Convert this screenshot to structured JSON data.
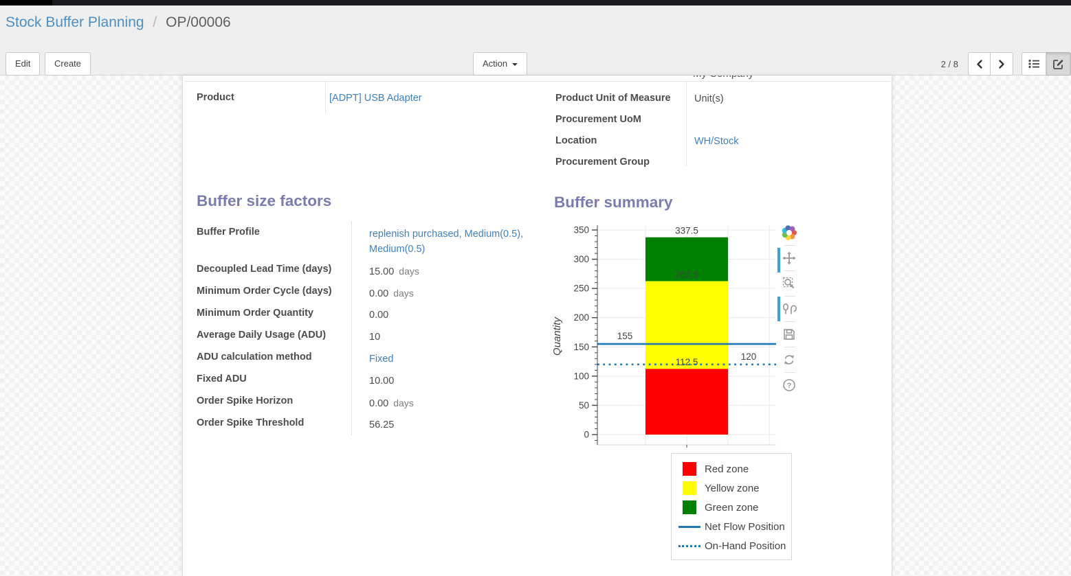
{
  "breadcrumb": {
    "parent": "Stock Buffer Planning",
    "separator": "/",
    "current": "OP/00006"
  },
  "controls": {
    "edit": "Edit",
    "create": "Create",
    "action": "Action",
    "pager": "2 / 8",
    "view_switcher": [
      "list-view",
      "form-view"
    ],
    "active_view": "form-view"
  },
  "form": {
    "clipped_value": "My Company",
    "product_group": {
      "rows": [
        {
          "label": "Product",
          "value": "[ADPT] USB Adapter"
        }
      ]
    },
    "info_group": {
      "rows": [
        {
          "label": "Product Unit of Measure",
          "value": "Unit(s)"
        },
        {
          "label": "Procurement UoM",
          "value": ""
        },
        {
          "label": "Location",
          "value": "WH/Stock"
        },
        {
          "label": "Procurement Group",
          "value": ""
        }
      ]
    },
    "buffer_factors": {
      "title": "Buffer size factors",
      "rows": [
        {
          "label": "Buffer Profile",
          "value": "replenish purchased, Medium(0.5), Medium(0.5)"
        },
        {
          "label": "Decoupled Lead Time (days)",
          "value": "15.00",
          "suffix": "days"
        },
        {
          "label": "Minimum Order Cycle (days)",
          "value": "0.00",
          "suffix": "days"
        },
        {
          "label": "Minimum Order Quantity",
          "value": "0.00"
        },
        {
          "label": "Average Daily Usage (ADU)",
          "value": "10"
        },
        {
          "label": "ADU calculation method",
          "value": "Fixed"
        },
        {
          "label": "Fixed ADU",
          "value": "10.00"
        },
        {
          "label": "Order Spike Horizon",
          "value": "0.00",
          "suffix": "days"
        },
        {
          "label": "Order Spike Threshold",
          "value": "56.25"
        }
      ]
    },
    "buffer_summary": {
      "title": "Buffer summary"
    }
  },
  "modebar": {
    "buttons": [
      "plotly-logo",
      "pan",
      "box-zoom",
      "compare-data-on-hover",
      "download-plot",
      "reset-axes",
      "help"
    ],
    "active": [
      "pan",
      "compare-data-on-hover"
    ]
  },
  "colors": {
    "heading": "#7c7bad",
    "link": "#3f80bd",
    "red_zone": "#ff0000",
    "yellow_zone": "#ffff00",
    "green_zone": "#008000",
    "flow_line": "#1f77b4"
  },
  "chart_data": {
    "type": "bar",
    "stacked": true,
    "categories": [
      ""
    ],
    "series": [
      {
        "name": "Red zone",
        "color": "#ff0000",
        "values": [
          112.5
        ],
        "top_label": "112.5"
      },
      {
        "name": "Yellow zone",
        "color": "#ffff00",
        "values": [
          150
        ],
        "top_label": "262.5"
      },
      {
        "name": "Green zone",
        "color": "#008000",
        "values": [
          75
        ],
        "top_label": "337.5"
      }
    ],
    "cumulative_tops": [
      112.5,
      262.5,
      337.5
    ],
    "hlines": [
      {
        "name": "Net Flow Position",
        "y": 155,
        "label": "155",
        "style": "solid",
        "color": "#1f77b4",
        "label_align": "left"
      },
      {
        "name": "On-Hand Position",
        "y": 120,
        "label": "120",
        "style": "dotted",
        "color": "#1f77b4",
        "label_align": "right"
      }
    ],
    "title": "",
    "xlabel": "",
    "ylabel": "Quantity",
    "ylim": [
      0,
      350
    ],
    "yticks_major": 50,
    "yticks_minor": 10,
    "grid": true,
    "legend_position": "bottom-right",
    "legend": [
      {
        "label": "Red zone",
        "swatch": "square",
        "color": "#ff0000"
      },
      {
        "label": "Yellow zone",
        "swatch": "square",
        "color": "#ffff00"
      },
      {
        "label": "Green zone",
        "swatch": "square",
        "color": "#008000"
      },
      {
        "label": "Net Flow Position",
        "swatch": "line-solid",
        "color": "#1f77b4"
      },
      {
        "label": "On-Hand Position",
        "swatch": "line-dotted",
        "color": "#1f77b4"
      }
    ]
  }
}
